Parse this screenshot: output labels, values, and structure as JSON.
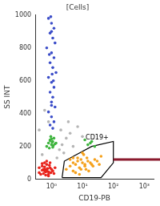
{
  "chart_data": {
    "type": "scatter",
    "title": "[Cells]",
    "x_label": "CD19-PB",
    "y_label": "SS INT",
    "log": "x",
    "grid": false,
    "xlim": [
      0.3,
      2000
    ],
    "xticks": [
      {
        "value": 1,
        "label": "10⁰"
      },
      {
        "value": 10,
        "label": "10¹"
      },
      {
        "value": 100,
        "label": "10²"
      },
      {
        "value": 1000,
        "label": "10³"
      }
    ],
    "ylim": [
      0,
      1000
    ],
    "yticks": [
      0,
      200,
      400,
      600,
      800,
      1000
    ],
    "series": [
      {
        "color": "#b5b5b5",
        "marker": "circle",
        "x": [
          0.5,
          1.5,
          2,
          3,
          5,
          0.4,
          0.8,
          2.5,
          4,
          7,
          1.8,
          3.5,
          10,
          0.6,
          2.2
        ],
        "values": [
          150,
          130,
          300,
          250,
          200,
          300,
          350,
          160,
          280,
          320,
          180,
          350,
          260,
          420,
          210
        ]
      },
      {
        "color": "#3a4cc8",
        "marker": "circle",
        "x": [
          0.8,
          1.0,
          1.2,
          0.9,
          1.1,
          1.3,
          0.7,
          1.0,
          1.2,
          0.9,
          1.1,
          1.4,
          0.8,
          1.0,
          1.2,
          0.9,
          1.1,
          1.0,
          1.3,
          0.8,
          1.0,
          1.2,
          0.9,
          1.1,
          1.0,
          0.85,
          1.15,
          1.0,
          0.95,
          1.05
        ],
        "values": [
          980,
          950,
          920,
          890,
          860,
          830,
          800,
          770,
          740,
          710,
          680,
          650,
          620,
          590,
          560,
          530,
          500,
          470,
          440,
          410,
          380,
          350,
          330,
          310,
          900,
          760,
          600,
          450,
          990,
          640
        ]
      },
      {
        "color": "#3fb43f",
        "marker": "circle",
        "x": [
          0.7,
          0.8,
          0.9,
          1.0,
          1.1,
          1.2,
          1.3,
          0.85,
          0.95,
          1.05,
          1.15,
          1.0,
          0.9,
          1.1,
          1.4,
          15,
          20,
          25,
          12,
          18
        ],
        "values": [
          200,
          220,
          240,
          210,
          230,
          250,
          215,
          190,
          260,
          225,
          205,
          245,
          235,
          195,
          220,
          210,
          230,
          200,
          240,
          220
        ]
      },
      {
        "color": "#e8231b",
        "marker": "circle",
        "x": [
          0.4,
          0.5,
          0.6,
          0.7,
          0.8,
          0.5,
          0.6,
          0.7,
          0.9,
          1.0,
          0.45,
          0.55,
          0.65,
          0.75,
          0.85,
          0.6,
          0.7,
          0.8,
          1.1,
          1.3,
          0.5,
          0.65,
          0.8,
          0.95,
          0.4,
          0.7,
          0.6,
          0.9,
          1.2,
          0.55
        ],
        "values": [
          40,
          55,
          60,
          50,
          45,
          80,
          75,
          90,
          70,
          60,
          30,
          35,
          25,
          65,
          85,
          100,
          110,
          30,
          50,
          70,
          95,
          45,
          20,
          40,
          70,
          60,
          50,
          100,
          35,
          60
        ]
      },
      {
        "color": "#f5a11c",
        "marker": "circle",
        "x": [
          3,
          4,
          5,
          6,
          8,
          10,
          12,
          15,
          20,
          25,
          4,
          5,
          7,
          9,
          11,
          14,
          18,
          22,
          30,
          40,
          6,
          8,
          10,
          13,
          16,
          5,
          7,
          9,
          12,
          35
        ],
        "values": [
          60,
          80,
          50,
          90,
          70,
          100,
          80,
          110,
          90,
          120,
          120,
          130,
          130,
          60,
          150,
          130,
          100,
          80,
          110,
          140,
          40,
          30,
          160,
          60,
          50,
          100,
          110,
          120,
          90,
          90
        ]
      },
      {
        "name": "CD19+",
        "type": "line",
        "color": "#000000",
        "x": [
          2.2,
          2.6,
          20,
          100,
          100,
          40,
          2.2
        ],
        "values": [
          10,
          110,
          200,
          230,
          100,
          10,
          10
        ]
      }
    ]
  }
}
